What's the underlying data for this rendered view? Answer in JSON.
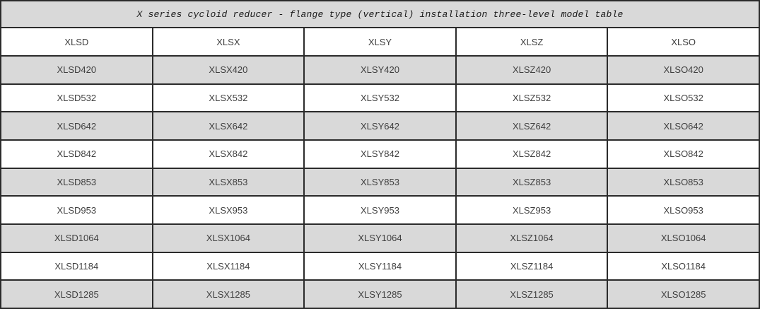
{
  "title": "X series cycloid reducer - flange type (vertical) installation three-level model table",
  "table": {
    "columns": [
      "XLSD",
      "XLSX",
      "XLSY",
      "XLSZ",
      "XLSO"
    ],
    "rows": [
      [
        "XLSD420",
        "XLSX420",
        "XLSY420",
        "XLSZ420",
        "XLSO420"
      ],
      [
        "XLSD532",
        "XLSX532",
        "XLSY532",
        "XLSZ532",
        "XLSO532"
      ],
      [
        "XLSD642",
        "XLSX642",
        "XLSY642",
        "XLSZ642",
        "XLSO642"
      ],
      [
        "XLSD842",
        "XLSX842",
        "XLSY842",
        "XLSZ842",
        "XLSO842"
      ],
      [
        "XLSD853",
        "XLSX853",
        "XLSY853",
        "XLSZ853",
        "XLSO853"
      ],
      [
        "XLSD953",
        "XLSX953",
        "XLSY953",
        "XLSZ953",
        "XLSO953"
      ],
      [
        "XLSD1064",
        "XLSX1064",
        "XLSY1064",
        "XLSZ1064",
        "XLSO1064"
      ],
      [
        "XLSD1184",
        "XLSX1184",
        "XLSY1184",
        "XLSZ1184",
        "XLSO1184"
      ],
      [
        "XLSD1285",
        "XLSX1285",
        "XLSY1285",
        "XLSZ1285",
        "XLSO1285"
      ]
    ],
    "shaded_row_indexes": [
      0,
      2,
      4,
      6,
      8
    ]
  },
  "colors": {
    "border": "#2b2b2b",
    "shaded_row_bg": "#d9d9d9",
    "plain_row_bg": "#ffffff",
    "cell_text": "#3f3f3f",
    "title_text": "#1a1a1a"
  }
}
